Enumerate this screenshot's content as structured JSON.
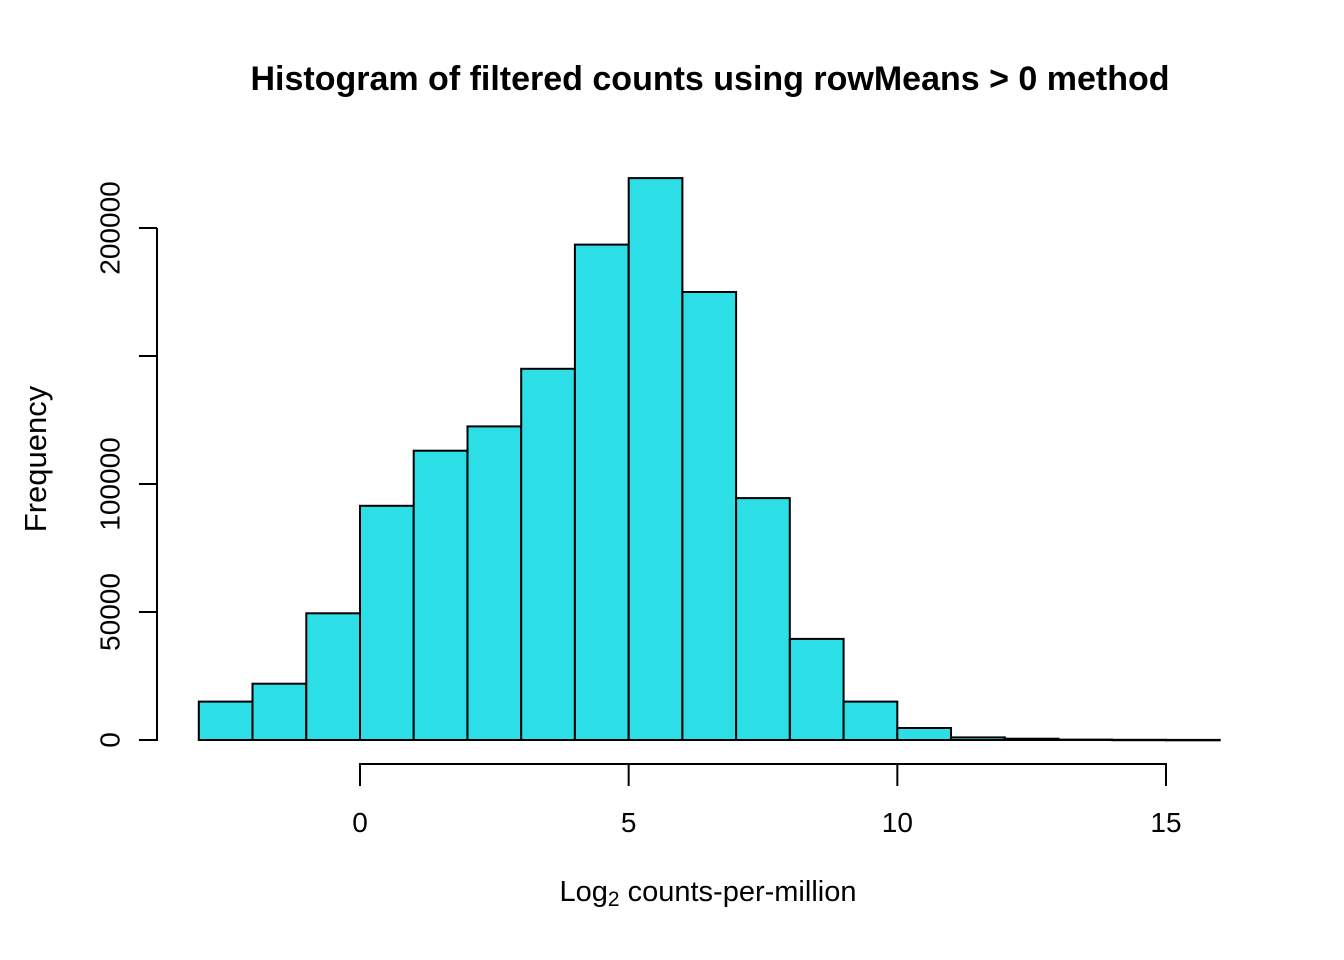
{
  "chart_data": {
    "type": "histogram",
    "title": "Histogram of filtered counts using rowMeans > 0 method",
    "ylabel": "Frequency",
    "xlabel": "Log2 counts-per-million",
    "xlabel_parts": {
      "prefix": "Log",
      "sub": "2",
      "rest": " counts-per-million"
    },
    "bin_breaks": [
      -3,
      -2,
      -1,
      0,
      1,
      2,
      3,
      4,
      5,
      6,
      7,
      8,
      9,
      10,
      11,
      12,
      13,
      14,
      15,
      16
    ],
    "counts": [
      15000,
      22000,
      49500,
      91500,
      113000,
      122500,
      145000,
      193500,
      219500,
      175000,
      94500,
      39500,
      15000,
      4700,
      1000,
      500,
      150,
      80,
      40
    ],
    "xlim": [
      -3,
      16
    ],
    "ylim": [
      0,
      220000
    ],
    "x_ticks": [
      {
        "v": 0,
        "label": "0"
      },
      {
        "v": 5,
        "label": "5"
      },
      {
        "v": 10,
        "label": "10"
      },
      {
        "v": 15,
        "label": "15"
      }
    ],
    "y_ticks": [
      {
        "v": 0,
        "label": "0"
      },
      {
        "v": 50000,
        "label": "50000"
      },
      {
        "v": 100000,
        "label": "100000"
      },
      {
        "v": 150000,
        "label": ""
      },
      {
        "v": 200000,
        "label": "200000"
      }
    ],
    "grid": "off",
    "legend": "none",
    "colors": {
      "bar_fill": "#2CDFE6",
      "bar_border": "#000000",
      "axis": "#000000",
      "background": "#ffffff"
    }
  }
}
